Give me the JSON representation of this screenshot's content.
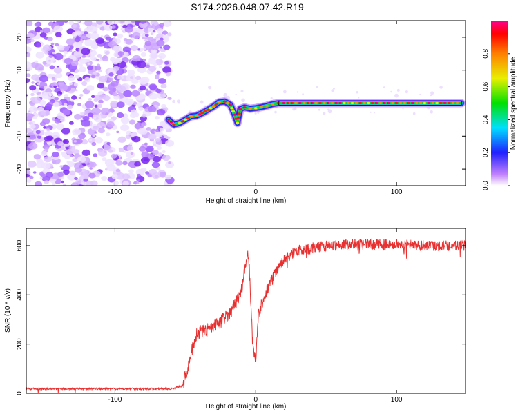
{
  "title": "S174.2026.048.07.42.R19",
  "chart_data": [
    {
      "type": "heatmap",
      "name": "spectrogram",
      "xlabel": "Height of straight line (km)",
      "ylabel": "Frequency (Hz)",
      "xlim": [
        -163,
        149
      ],
      "ylim": [
        -25,
        25
      ],
      "xticks": [
        -100,
        0,
        100
      ],
      "yticks": [
        -20,
        -10,
        0,
        10,
        20
      ],
      "noise_region": [
        -163,
        -61
      ],
      "ridge": {
        "x": [
          -62,
          -58,
          -54,
          -50,
          -46,
          -42,
          -38,
          -34,
          -30,
          -26,
          -22,
          -18,
          -15,
          -13,
          -11,
          -8,
          -4,
          0,
          4,
          8,
          12,
          16,
          20,
          40,
          60,
          80,
          100,
          120,
          146
        ],
        "y": [
          -5,
          -6.5,
          -6,
          -5,
          -4,
          -3.8,
          -3,
          -2,
          -1,
          0.3,
          0.5,
          -0.5,
          -3.5,
          -6,
          -1.8,
          -1.3,
          -1.7,
          -1.5,
          -1.2,
          -0.8,
          -0.3,
          0,
          0,
          0,
          0,
          0,
          0,
          0,
          0
        ]
      },
      "colorbar": {
        "label": "Normalized spectral amplitude",
        "range": [
          0,
          1
        ],
        "ticks": [
          "0.0",
          "0.2",
          "0.4",
          "0.6",
          "0.8"
        ]
      }
    },
    {
      "type": "line",
      "name": "snr",
      "xlabel": "Height of straight line (km)",
      "ylabel": "SNR (10 * v/v)",
      "xlim": [
        -163,
        149
      ],
      "ylim": [
        0,
        670
      ],
      "xticks": [
        -100,
        0,
        100
      ],
      "yticks": [
        0,
        200,
        400,
        600
      ],
      "series": [
        {
          "name": "SNR",
          "color": "#e83030",
          "x": [
            -163,
            -140,
            -120,
            -100,
            -80,
            -60,
            -52,
            -48,
            -45,
            -42,
            -38,
            -34,
            -30,
            -26,
            -22,
            -18,
            -14,
            -10,
            -8,
            -6,
            -5,
            -4,
            -3,
            -2,
            0,
            2,
            5,
            10,
            15,
            20,
            25,
            30,
            40,
            50,
            70,
            100,
            120,
            149
          ],
          "y": [
            18,
            18,
            18,
            18,
            18,
            18,
            30,
            110,
            180,
            240,
            255,
            260,
            270,
            285,
            310,
            330,
            370,
            420,
            500,
            560,
            560,
            440,
            300,
            200,
            140,
            320,
            380,
            440,
            500,
            540,
            565,
            580,
            590,
            600,
            605,
            605,
            600,
            600
          ]
        }
      ]
    }
  ]
}
